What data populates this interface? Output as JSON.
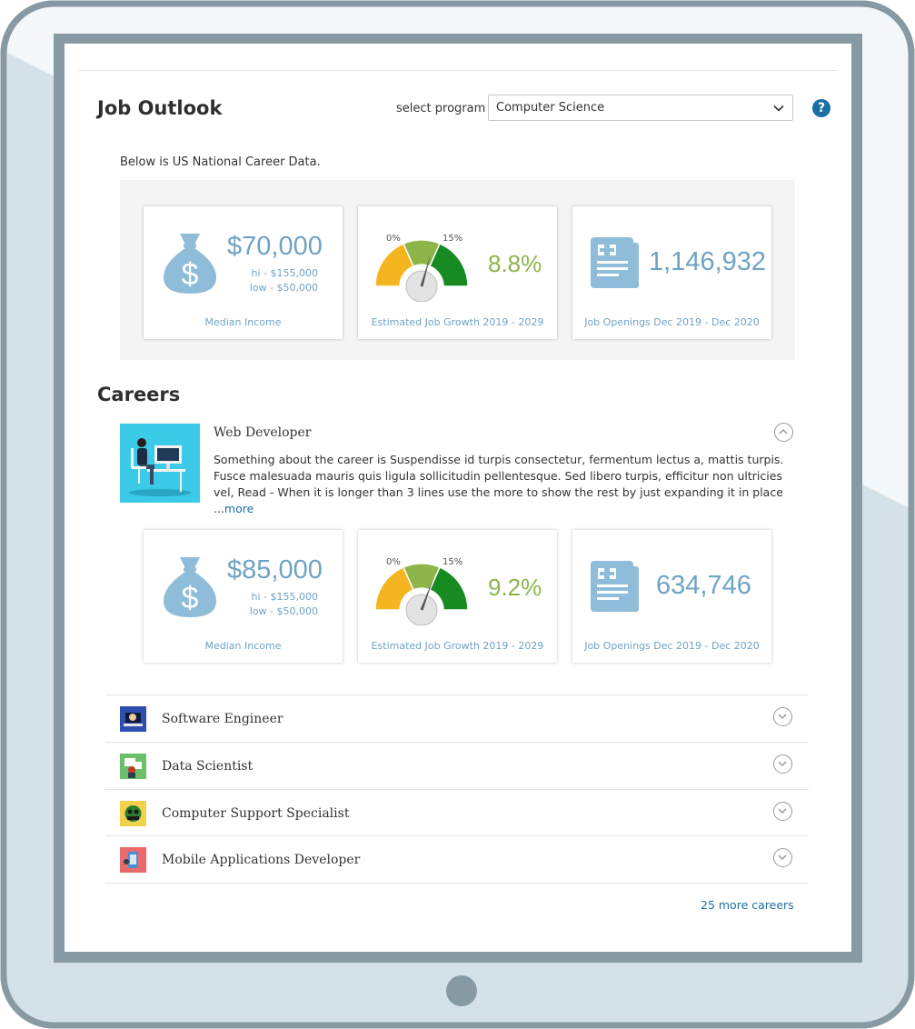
{
  "job_outlook": {
    "title": "Job Outlook",
    "select_label": "select program",
    "selected_program": "Computer Science",
    "help_label": "?",
    "intro_text": "Below is US National Career Data."
  },
  "national_stats": {
    "median_income": {
      "value": "$70,000",
      "hi": "hi - $155,000",
      "low": "low - $50,000",
      "caption": "Median Income"
    },
    "job_growth": {
      "value": "8.8%",
      "low_mark": "0%",
      "high_mark": "15%",
      "percent": 8.8,
      "caption": "Estimated Job Growth 2019 - 2029"
    },
    "job_openings": {
      "value": "1,146,932",
      "caption": "Job Openings  Dec 2019 - Dec 2020"
    }
  },
  "careers": {
    "title": "Careers",
    "featured": {
      "name": "Web Developer",
      "description": "Something about the career is Suspendisse id turpis consectetur, fermentum lectus a, mattis turpis. Fusce malesuada mauris quis ligula sollicitudin pellentesque. Sed libero turpis, efficitur non ultricies vel, Read -  When it is longer than 3 lines use the more to show the rest by just expanding it in place ...",
      "more_label": "more",
      "stats": {
        "median_income": {
          "value": "$85,000",
          "hi": "hi - $155,000",
          "low": "low - $50,000",
          "caption": "Median Income"
        },
        "job_growth": {
          "value": "9.2%",
          "low_mark": "0%",
          "high_mark": "15%",
          "percent": 9.2,
          "caption": "Estimated Job Growth 2019 - 2029"
        },
        "job_openings": {
          "value": "634,746",
          "caption": "Job Openings  Dec 2019 - Dec 2020"
        }
      }
    },
    "list": [
      {
        "name": "Software Engineer",
        "thumb_color": "#2f4fb0"
      },
      {
        "name": "Data Scientist",
        "thumb_color": "#6cbf6a"
      },
      {
        "name": "Computer Support Specialist",
        "thumb_color": "#f2d24a"
      },
      {
        "name": "Mobile Applications Developer",
        "thumb_color": "#e96a6a"
      }
    ],
    "more_careers": "25 more careers"
  },
  "colors": {
    "accent": "#6fa3c4",
    "link": "#1c6fa3",
    "growth": "#8db54a",
    "frame": "#8799a3"
  }
}
